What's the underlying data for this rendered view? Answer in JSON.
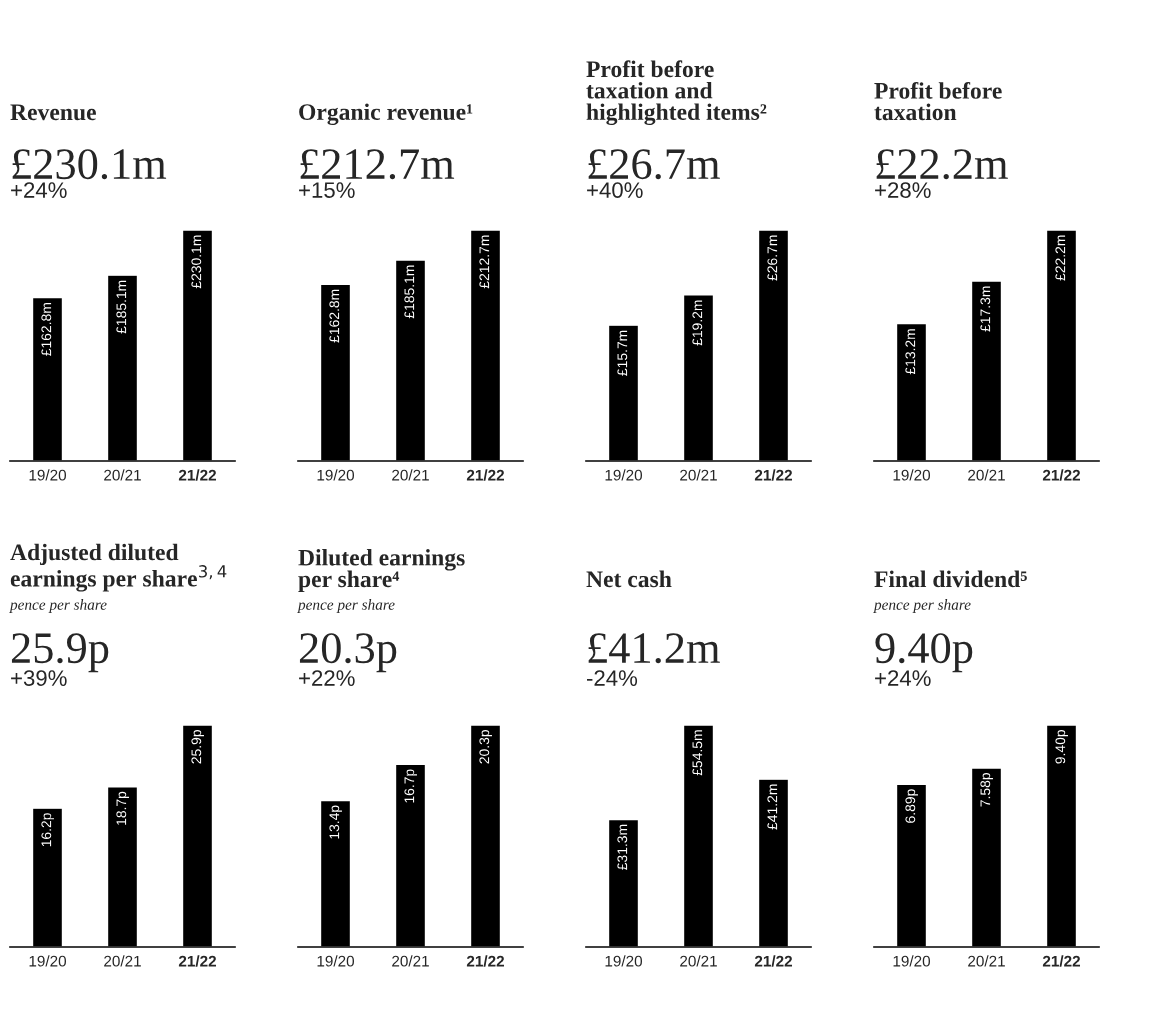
{
  "chart_data": [
    {
      "type": "bar",
      "title": "Revenue",
      "annotations": [
        "£230.1m",
        "+24%"
      ],
      "categories": [
        "19/20",
        "20/21",
        "21/22"
      ],
      "values": [
        162.8,
        185.1,
        230.1
      ],
      "value_labels": [
        "£162.8m",
        "£185.1m",
        "£230.1m"
      ],
      "color": "#000000",
      "ylim": [
        0,
        230.1
      ],
      "tick_labels": "x",
      "grid": false,
      "legend": false
    },
    {
      "type": "bar",
      "title": "Organic revenue¹",
      "annotations": [
        "£212.7m",
        "+15%"
      ],
      "categories": [
        "19/20",
        "20/21",
        "21/22"
      ],
      "values": [
        162.8,
        185.1,
        212.7
      ],
      "value_labels": [
        "£162.8m",
        "£185.1m",
        "£212.7m"
      ],
      "color": "#000000",
      "ylim": [
        0,
        212.7
      ],
      "tick_labels": "x",
      "grid": false,
      "legend": false
    },
    {
      "type": "bar",
      "title": "Profit before\ntaxation and\nhighlighted items²",
      "annotations": [
        "£26.7m",
        "+40%"
      ],
      "categories": [
        "19/20",
        "20/21",
        "21/22"
      ],
      "values": [
        15.7,
        19.2,
        26.7
      ],
      "value_labels": [
        "£15.7m",
        "£19.2m",
        "£26.7m"
      ],
      "color": "#000000",
      "ylim": [
        0,
        26.7
      ],
      "tick_labels": "x",
      "grid": false,
      "legend": false
    },
    {
      "type": "bar",
      "title": "Profit before\ntaxation",
      "annotations": [
        "£22.2m",
        "+28%"
      ],
      "categories": [
        "19/20",
        "20/21",
        "21/22"
      ],
      "values": [
        13.2,
        17.3,
        22.2
      ],
      "value_labels": [
        "£13.2m",
        "£17.3m",
        "£22.2m"
      ],
      "color": "#000000",
      "ylim": [
        0,
        22.2
      ],
      "tick_labels": "x",
      "grid": false,
      "legend": false
    },
    {
      "type": "bar",
      "title": "Adjusted diluted\nearnings per share$^{3,4}$",
      "subtitle": "pence per share",
      "annotations": [
        "25.9p",
        "+39%"
      ],
      "categories": [
        "19/20",
        "20/21",
        "21/22"
      ],
      "values": [
        16.2,
        18.7,
        25.9
      ],
      "value_labels": [
        "16.2p",
        "18.7p",
        "25.9p"
      ],
      "color": "#000000",
      "ylim": [
        0,
        25.9
      ],
      "tick_labels": "x",
      "grid": false,
      "legend": false
    },
    {
      "type": "bar",
      "title": "Diluted earnings\nper share⁴",
      "subtitle": "pence per share",
      "annotations": [
        "20.3p",
        "+22%"
      ],
      "categories": [
        "19/20",
        "20/21",
        "21/22"
      ],
      "values": [
        13.4,
        16.7,
        20.3
      ],
      "value_labels": [
        "13.4p",
        "16.7p",
        "20.3p"
      ],
      "color": "#000000",
      "ylim": [
        0,
        20.3
      ],
      "tick_labels": "x",
      "grid": false,
      "legend": false
    },
    {
      "type": "bar",
      "title": "Net cash",
      "annotations": [
        "£41.2m",
        "-24%"
      ],
      "categories": [
        "19/20",
        "20/21",
        "21/22"
      ],
      "values": [
        31.3,
        54.5,
        41.2
      ],
      "value_labels": [
        "£31.3m",
        "£54.5m",
        "£41.2m"
      ],
      "color": "#000000",
      "ylim": [
        0,
        54.5
      ],
      "tick_labels": "x",
      "grid": false,
      "legend": false
    },
    {
      "type": "bar",
      "title": "Final dividend⁵",
      "subtitle": "pence per share",
      "annotations": [
        "9.40p",
        "+24%"
      ],
      "categories": [
        "19/20",
        "20/21",
        "21/22"
      ],
      "values": [
        6.89,
        7.58,
        9.4
      ],
      "value_labels": [
        "6.89p",
        "7.58p",
        "9.40p"
      ],
      "color": "#000000",
      "ylim": [
        0,
        9.4
      ],
      "tick_labels": "x",
      "grid": false,
      "legend": false
    }
  ]
}
